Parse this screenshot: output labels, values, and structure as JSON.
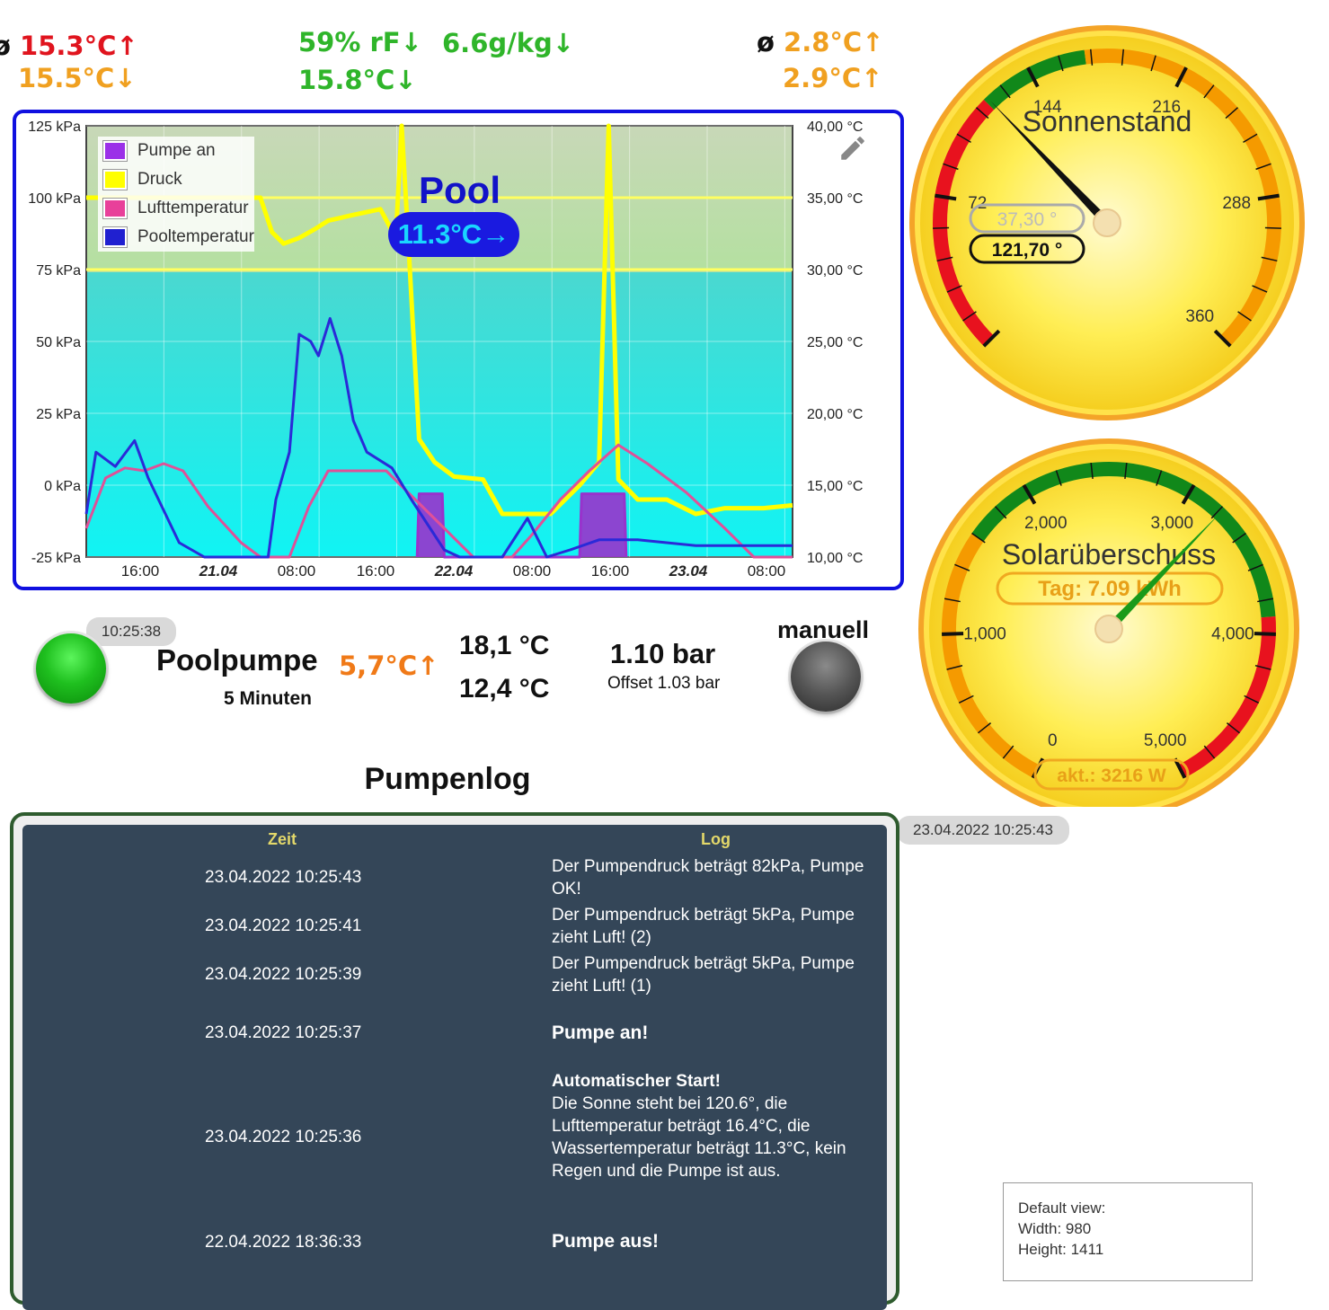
{
  "top_stats": {
    "left_prefix": "ø",
    "left_top": "15.3°C↑",
    "left_bottom": "15.5°C↓",
    "humidity": "59% rF↓",
    "abs_humidity": "6.6g/kg↓",
    "dewpoint": "15.8°C↓",
    "right_prefix": "ø",
    "right_top": "2.8°C↑",
    "right_bottom": "2.9°C↑"
  },
  "chart": {
    "title": "Pool",
    "badge": "11.3°C→",
    "chart_data": {
      "type": "line",
      "y_left_ticks": [
        "125 kPa",
        "100 kPa",
        "75 kPa",
        "50 kPa",
        "25 kPa",
        "0 kPa",
        "-25 kPa"
      ],
      "y_right_ticks": [
        "40,00 °C",
        "35,00 °C",
        "30,00 °C",
        "25,00 °C",
        "20,00 °C",
        "15,00 °C",
        "10,00 °C"
      ],
      "x_ticks": [
        {
          "label": "16:00",
          "bold": false
        },
        {
          "label": "21.04",
          "bold": true
        },
        {
          "label": "08:00",
          "bold": false
        },
        {
          "label": "16:00",
          "bold": false
        },
        {
          "label": "22.04",
          "bold": true
        },
        {
          "label": "08:00",
          "bold": false
        },
        {
          "label": "16:00",
          "bold": false
        },
        {
          "label": "23.04",
          "bold": true
        },
        {
          "label": "08:00",
          "bold": false
        }
      ],
      "ylim_left": [
        -25,
        125
      ],
      "ylim_right": [
        10,
        40
      ],
      "series": [
        {
          "name": "Pooltemperatur",
          "color": "#2a2ad8",
          "axis": "right",
          "points": [
            [
              0,
              13
            ],
            [
              0.5,
              17.3
            ],
            [
              1.5,
              16.3
            ],
            [
              2.5,
              18.1
            ],
            [
              3.2,
              15.5
            ],
            [
              4.8,
              11.0
            ],
            [
              6.1,
              10.0
            ],
            [
              9.4,
              10.0
            ],
            [
              9.8,
              14.0
            ],
            [
              10.5,
              17.3
            ],
            [
              11.0,
              25.5
            ],
            [
              11.6,
              25.0
            ],
            [
              12.0,
              24.0
            ],
            [
              12.6,
              26.6
            ],
            [
              13.2,
              24.0
            ],
            [
              13.8,
              19.5
            ],
            [
              14.5,
              17.3
            ],
            [
              15.8,
              16.2
            ],
            [
              16.8,
              14.0
            ],
            [
              18.5,
              10.5
            ],
            [
              19.3,
              10.0
            ],
            [
              21.5,
              10.0
            ],
            [
              22.8,
              12.7
            ],
            [
              23.8,
              10.0
            ],
            [
              25.0,
              10.5
            ],
            [
              26.5,
              11.2
            ],
            [
              28.5,
              11.2
            ],
            [
              31.5,
              10.8
            ],
            [
              34.0,
              10.8
            ],
            [
              36.5,
              10.8
            ]
          ]
        },
        {
          "name": "Lufttemperatur",
          "color": "#e05098",
          "axis": "right",
          "points": [
            [
              0,
              12.0
            ],
            [
              1.0,
              15.5
            ],
            [
              2.0,
              16.2
            ],
            [
              3.0,
              16.0
            ],
            [
              4.0,
              16.5
            ],
            [
              5.0,
              16.0
            ],
            [
              6.3,
              13.5
            ],
            [
              8.0,
              11.0
            ],
            [
              9.0,
              10.0
            ],
            [
              10.5,
              10.0
            ],
            [
              11.5,
              13.5
            ],
            [
              12.5,
              16.0
            ],
            [
              14.0,
              16.0
            ],
            [
              15.5,
              16.0
            ],
            [
              17.0,
              14.0
            ],
            [
              18.5,
              12.0
            ],
            [
              20.0,
              10.0
            ],
            [
              22.0,
              10.0
            ],
            [
              23.0,
              11.5
            ],
            [
              24.5,
              14.0
            ],
            [
              26.0,
              16.0
            ],
            [
              27.5,
              17.8
            ],
            [
              29.0,
              16.5
            ],
            [
              31.0,
              14.5
            ],
            [
              33.0,
              12.0
            ],
            [
              34.5,
              10.0
            ],
            [
              36.5,
              10.0
            ]
          ]
        },
        {
          "name": "Druck",
          "color": "#ffff00",
          "axis": "left",
          "points": [
            [
              0,
              100
            ],
            [
              9,
              100
            ],
            [
              9.6,
              88
            ],
            [
              10.2,
              84
            ],
            [
              11.0,
              86
            ],
            [
              11.8,
              89
            ],
            [
              12.5,
              92
            ],
            [
              13.8,
              94
            ],
            [
              15.2,
              96
            ],
            [
              16.0,
              86
            ],
            [
              16.3,
              160
            ],
            [
              16.6,
              90
            ],
            [
              17.2,
              16
            ],
            [
              18.0,
              8
            ],
            [
              19.0,
              3
            ],
            [
              20.5,
              2
            ],
            [
              21.5,
              -10
            ],
            [
              24.0,
              -10
            ],
            [
              25.5,
              0
            ],
            [
              26.5,
              8
            ],
            [
              27.0,
              130
            ],
            [
              27.5,
              2
            ],
            [
              28.5,
              -5
            ],
            [
              30.0,
              -5
            ],
            [
              31.5,
              -10
            ],
            [
              33.0,
              -8
            ],
            [
              35.0,
              -8
            ],
            [
              36.5,
              -7
            ]
          ]
        },
        {
          "name": "Pumpe an",
          "color": "#9932cc",
          "axis": "left",
          "points": [
            [
              17.1,
              -25
            ],
            [
              17.2,
              -3
            ],
            [
              18.4,
              -3
            ],
            [
              18.5,
              -25
            ],
            [
              25.5,
              -25
            ],
            [
              25.6,
              -3
            ],
            [
              27.8,
              -3
            ],
            [
              27.9,
              -25
            ]
          ]
        }
      ]
    }
  },
  "legend": [
    {
      "label": "Pumpe an",
      "color": "#9b30e8"
    },
    {
      "label": "Druck",
      "color": "#ffff00"
    },
    {
      "label": "Lufttemperatur",
      "color": "#e8409a"
    },
    {
      "label": "Pooltemperatur",
      "color": "#2020d0"
    }
  ],
  "pump": {
    "timestamp": "10:25:38",
    "name": "Poolpumpe",
    "duration": "5 Minuten",
    "delta": "5,7°C↑",
    "temp_a": "18,1 °C",
    "temp_b": "12,4 °C",
    "pressure": "1.10 bar",
    "offset": "Offset 1.03 bar",
    "mode": "manuell"
  },
  "log": {
    "title": "Pumpenlog",
    "updated": "23.04.2022 10:25:43",
    "col_time": "Zeit",
    "col_log": "Log",
    "rows": [
      {
        "time": "23.04.2022 10:25:43",
        "msg": "Der Pumpendruck beträgt 82kPa, Pumpe OK!",
        "title": ""
      },
      {
        "time": "23.04.2022 10:25:41",
        "msg": "Der Pumpendruck beträgt 5kPa, Pumpe zieht Luft! (2)",
        "title": ""
      },
      {
        "time": "23.04.2022 10:25:39",
        "msg": "Der Pumpendruck beträgt 5kPa, Pumpe zieht Luft! (1)",
        "title": ""
      },
      {
        "time": "23.04.2022 10:25:37",
        "msg": "",
        "title": "Pumpe an!"
      },
      {
        "time": "23.04.2022 10:25:36",
        "msg": "Die Sonne steht bei 120.6°, die Lufttemperatur beträgt 16.4°C, die Wassertemperatur beträgt 11.3°C, kein Regen und die Pumpe ist aus.",
        "title": "Automatischer Start!"
      },
      {
        "time": "22.04.2022 18:36:33",
        "msg": "",
        "title": "Pumpe aus!"
      }
    ]
  },
  "gauge_sun": {
    "title": "Sonnenstand",
    "value": 121.7,
    "value_label": "121,70 °",
    "secondary_label": "37,30 °",
    "min": 0,
    "max": 360,
    "ticks": [
      "72",
      "144",
      "216",
      "288",
      "360"
    ]
  },
  "gauge_solar": {
    "title": "Solarüberschuss",
    "value": 3216,
    "value_label": "akt.: 3216 W",
    "day_label": "Tag: 7.09 kWh",
    "min": 0,
    "max": 5000,
    "ticks": [
      "0",
      "1,000",
      "2,000",
      "3,000",
      "4,000",
      "5,000"
    ]
  },
  "info_box": {
    "line1": "Default view:",
    "line2": "Width: 980",
    "line3": "Height: 1411"
  },
  "colors": {
    "chart_border": "#1010e0",
    "log_bg": "#344658",
    "gauge_face": "#ffe640"
  }
}
